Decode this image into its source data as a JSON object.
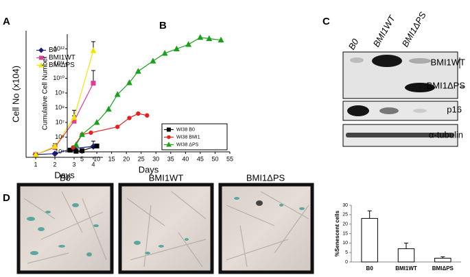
{
  "chart_data": [
    {
      "type": "line",
      "ylabel": "Cell No (x104)",
      "xlabel": "Days",
      "x": [
        1,
        2,
        3,
        4
      ],
      "xlim": [
        0.5,
        4.5
      ],
      "xticks": [
        1,
        2,
        3,
        4
      ],
      "ylim": [
        0,
        70
      ],
      "legend": "upper left",
      "series": [
        {
          "name": "B0",
          "color": "#1c1c80",
          "marker": "diamond",
          "values": [
            1.5,
            2,
            5,
            6
          ],
          "errors": [
            0.5,
            0.5,
            1,
            3
          ]
        },
        {
          "name": "BMI1WT",
          "color": "#e03c96",
          "marker": "square",
          "values": [
            1.5,
            5.5,
            20,
            41
          ],
          "errors": [
            0.5,
            1,
            3,
            7
          ]
        },
        {
          "name": "BMIΔPS",
          "color": "#f2e600",
          "marker": "triangle",
          "values": [
            1.5,
            6,
            22,
            59
          ],
          "errors": [
            0.5,
            1.5,
            4,
            5
          ]
        }
      ]
    },
    {
      "type": "line",
      "log_y": true,
      "ylabel": "Cumulative Cell Number",
      "xlabel": "Days",
      "xlim": [
        0,
        55
      ],
      "xticks": [
        5,
        10,
        15,
        20,
        25,
        30,
        35,
        40,
        45,
        50,
        55
      ],
      "ylim": [
        100000,
        10000000000000
      ],
      "yticks": [
        {
          "value": 100000,
          "label": "10⁵"
        },
        {
          "value": 1000000,
          "label": "10⁶"
        },
        {
          "value": 10000000,
          "label": "10⁷"
        },
        {
          "value": 100000000,
          "label": "10⁸"
        },
        {
          "value": 1000000000,
          "label": "10⁹"
        },
        {
          "value": 10000000000,
          "label": "10¹⁰"
        },
        {
          "value": 100000000000,
          "label": "10¹¹"
        },
        {
          "value": 1000000000000,
          "label": "10¹²"
        }
      ],
      "legend": "lower right",
      "series": [
        {
          "name": "WI38 B0",
          "color": "#000000",
          "marker": "square",
          "x": [
            1,
            3,
            5,
            10
          ],
          "values": [
            130000,
            110000,
            120000,
            250000
          ]
        },
        {
          "name": "WI38 BMI1",
          "color": "#e8201c",
          "marker": "circle",
          "x": [
            2,
            5,
            8,
            17,
            21,
            24,
            27
          ],
          "values": [
            200000,
            1500000,
            2000000,
            5000000,
            20000000,
            40000000,
            30000000
          ]
        },
        {
          "name": "WI38 ΔPS",
          "color": "#1aa01a",
          "marker": "triangle",
          "x": [
            3,
            5,
            10,
            14,
            17,
            21,
            24,
            29,
            33,
            37,
            41,
            45,
            48,
            52
          ],
          "values": [
            300000,
            1500000,
            10000000,
            80000000,
            800000000,
            5000000000,
            30000000000,
            150000000000,
            500000000000,
            1000000000000,
            2000000000000,
            6000000000000,
            5000000000000,
            4000000000000
          ]
        }
      ]
    },
    {
      "type": "bar",
      "ylabel": "%Senescent cells",
      "categories": [
        "B0",
        "BMI1WT",
        "BMIΔPS"
      ],
      "values": [
        23,
        7,
        2
      ],
      "errors": [
        4,
        3,
        0.7
      ],
      "color": "#ffffff",
      "ylim": [
        0,
        30
      ],
      "yticks": [
        0,
        5,
        10,
        15,
        20,
        25,
        30
      ]
    }
  ],
  "panel_letters": [
    "A",
    "B",
    "C",
    "D"
  ],
  "blot": {
    "lanes": [
      "B0",
      "BMI1WT",
      "BMI1ΔPS"
    ],
    "bands": [
      "BMI1WT",
      "BMI1ΔPS",
      "p16",
      "α-tubulin"
    ]
  },
  "micrographs": [
    "B0",
    "BMI1WT",
    "BMI1ΔPS"
  ]
}
